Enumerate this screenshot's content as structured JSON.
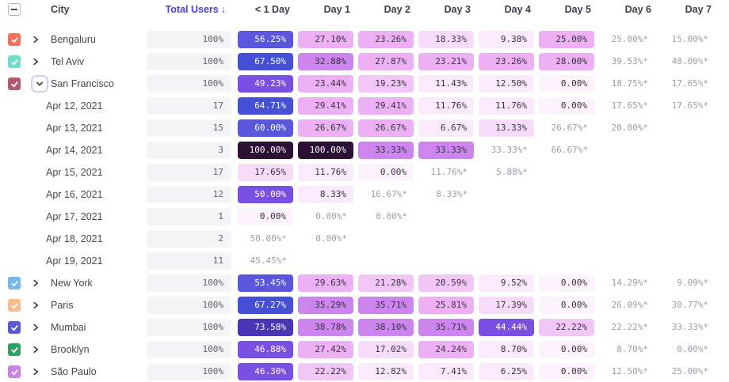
{
  "header": {
    "city_label": "City",
    "total_users_label": "Total Users",
    "sort_arrow": "↓",
    "day_columns": [
      "< 1 Day",
      "Day 1",
      "Day 2",
      "Day 3",
      "Day 4",
      "Day 5",
      "Day 6",
      "Day 7"
    ],
    "select_all_state": "indeterminate"
  },
  "colors": {
    "scale": [
      {
        "min": 99.5,
        "bg": "#2c1036",
        "fg": "#ffffff"
      },
      {
        "min": 70,
        "bg": "#4936b4",
        "fg": "#ffffff"
      },
      {
        "min": 62,
        "bg": "#4550d6",
        "fg": "#ffffff"
      },
      {
        "min": 52,
        "bg": "#5a57dc",
        "fg": "#ffffff"
      },
      {
        "min": 42,
        "bg": "#7a50e2",
        "fg": "#ffffff"
      },
      {
        "min": 31,
        "bg": "#cd85ee",
        "fg": "#3a3144"
      },
      {
        "min": 23,
        "bg": "#eeb0f4",
        "fg": "#3a3144"
      },
      {
        "min": 19,
        "bg": "#f2c6f7",
        "fg": "#3a3144"
      },
      {
        "min": 13,
        "bg": "#f7dcfa",
        "fg": "#3a3144"
      },
      {
        "min": 5,
        "bg": "#faeafc",
        "fg": "#3a3144"
      },
      {
        "min": 0,
        "bg": "#fdf3fe",
        "fg": "#3a3144"
      }
    ],
    "starred_text": "#9b9da8",
    "total_pill_bg": "#f4f4f6",
    "sorted_header": "#4b3fd8",
    "header_text": "#3c3e4a"
  },
  "rows": [
    {
      "type": "city",
      "label": "Bengaluru",
      "checkbox_color": "#f3715a",
      "checked": true,
      "expanded": false,
      "total": "100%",
      "days": [
        "56.25%",
        "27.10%",
        "23.26%",
        "18.33%",
        "9.38%",
        "25.00%",
        "25.00%*",
        "15.00%*"
      ]
    },
    {
      "type": "city",
      "label": "Tel Aviv",
      "checkbox_color": "#6fdcc8",
      "checked": true,
      "expanded": false,
      "total": "100%",
      "days": [
        "67.50%",
        "32.88%",
        "27.87%",
        "23.21%",
        "23.26%",
        "28.00%",
        "39.53%*",
        "48.00%*"
      ]
    },
    {
      "type": "city",
      "label": "San Francisco",
      "checkbox_color": "#b35a6e",
      "checked": true,
      "expanded": true,
      "total": "100%",
      "days": [
        "49.23%",
        "23.44%",
        "19.23%",
        "11.43%",
        "12.50%",
        "0.00%",
        "18.75%*",
        "17.65%*"
      ]
    },
    {
      "type": "date",
      "label": "Apr 12, 2021",
      "total": "17",
      "days": [
        "64.71%",
        "29.41%",
        "29.41%",
        "11.76%",
        "11.76%",
        "0.00%",
        "17.65%*",
        "17.65%*"
      ]
    },
    {
      "type": "date",
      "label": "Apr 13, 2021",
      "total": "15",
      "days": [
        "60.00%",
        "26.67%",
        "26.67%",
        "6.67%",
        "13.33%",
        "26.67%*",
        "20.00%*",
        ""
      ]
    },
    {
      "type": "date",
      "label": "Apr 14, 2021",
      "total": "3",
      "days": [
        "100.00%",
        "100.00%",
        "33.33%",
        "33.33%",
        "33.33%*",
        "66.67%*",
        "",
        ""
      ]
    },
    {
      "type": "date",
      "label": "Apr 15, 2021",
      "total": "17",
      "days": [
        "17.65%",
        "11.76%",
        "0.00%",
        "11.76%*",
        "5.88%*",
        "",
        "",
        ""
      ]
    },
    {
      "type": "date",
      "label": "Apr 16, 2021",
      "total": "12",
      "days": [
        "50.00%",
        "8.33%",
        "16.67%*",
        "8.33%*",
        "",
        "",
        "",
        ""
      ]
    },
    {
      "type": "date",
      "label": "Apr 17, 2021",
      "total": "1",
      "days": [
        "0.00%",
        "0.00%*",
        "0.00%*",
        "",
        "",
        "",
        "",
        ""
      ]
    },
    {
      "type": "date",
      "label": "Apr 18, 2021",
      "total": "2",
      "days": [
        "50.00%*",
        "0.00%*",
        "",
        "",
        "",
        "",
        "",
        ""
      ]
    },
    {
      "type": "date",
      "label": "Apr 19, 2021",
      "total": "11",
      "days": [
        "45.45%*",
        "",
        "",
        "",
        "",
        "",
        "",
        ""
      ]
    },
    {
      "type": "city",
      "label": "New York",
      "checkbox_color": "#74b9ee",
      "checked": true,
      "expanded": false,
      "total": "100%",
      "days": [
        "53.45%",
        "29.63%",
        "21.28%",
        "20.59%",
        "9.52%",
        "0.00%",
        "14.29%*",
        "9.09%*"
      ]
    },
    {
      "type": "city",
      "label": "Paris",
      "checkbox_color": "#f7bc8e",
      "checked": true,
      "expanded": false,
      "total": "100%",
      "days": [
        "67.27%",
        "35.29%",
        "35.71%",
        "25.81%",
        "17.39%",
        "0.00%",
        "26.09%*",
        "30.77%*"
      ]
    },
    {
      "type": "city",
      "label": "Mumbai",
      "checkbox_color": "#5a58d2",
      "checked": true,
      "expanded": false,
      "total": "100%",
      "days": [
        "73.58%",
        "38.78%",
        "38.10%",
        "35.71%",
        "44.44%",
        "22.22%",
        "22.22%*",
        "33.33%*"
      ]
    },
    {
      "type": "city",
      "label": "Brooklyn",
      "checkbox_color": "#2fa263",
      "checked": true,
      "expanded": false,
      "total": "100%",
      "days": [
        "46.88%",
        "27.42%",
        "17.02%",
        "24.24%",
        "8.70%",
        "0.00%",
        "8.70%*",
        "0.00%*"
      ]
    },
    {
      "type": "city",
      "label": "São Paulo",
      "checkbox_color": "#c983e6",
      "checked": true,
      "expanded": false,
      "total": "100%",
      "days": [
        "46.30%",
        "22.22%",
        "12.82%",
        "7.41%",
        "6.25%",
        "0.00%",
        "12.50%*",
        "25.00%*"
      ]
    }
  ]
}
